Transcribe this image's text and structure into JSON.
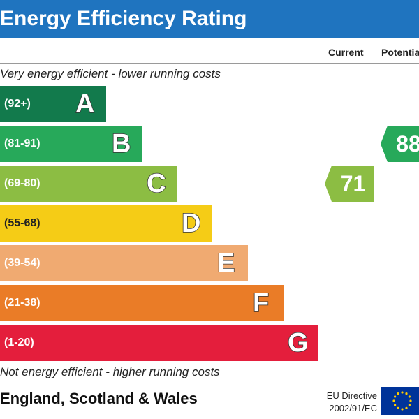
{
  "chart_data": {
    "type": "bar",
    "title": "Energy Efficiency Rating",
    "top_note": "Very energy efficient - lower running costs",
    "bottom_note": "Not energy efficient - higher running costs",
    "columns": [
      "Current",
      "Potential"
    ],
    "bands": [
      {
        "letter": "A",
        "range": "(92+)",
        "color": "#127a4c"
      },
      {
        "letter": "B",
        "range": "(81-91)",
        "color": "#27a95a"
      },
      {
        "letter": "C",
        "range": "(69-80)",
        "color": "#8cbd43"
      },
      {
        "letter": "D",
        "range": "(55-68)",
        "color": "#f5cc16"
      },
      {
        "letter": "E",
        "range": "(39-54)",
        "color": "#f0aa71"
      },
      {
        "letter": "F",
        "range": "(21-38)",
        "color": "#ea7c27"
      },
      {
        "letter": "G",
        "range": "(1-20)",
        "color": "#e41e3c"
      }
    ],
    "current": {
      "value": 71,
      "band": "C",
      "color": "#8cbd43"
    },
    "potential": {
      "value": 88,
      "band": "B",
      "color": "#27a95a"
    }
  },
  "footer": {
    "region": "England, Scotland & Wales",
    "directive_line1": "EU Directive",
    "directive_line2": "2002/91/EC"
  }
}
